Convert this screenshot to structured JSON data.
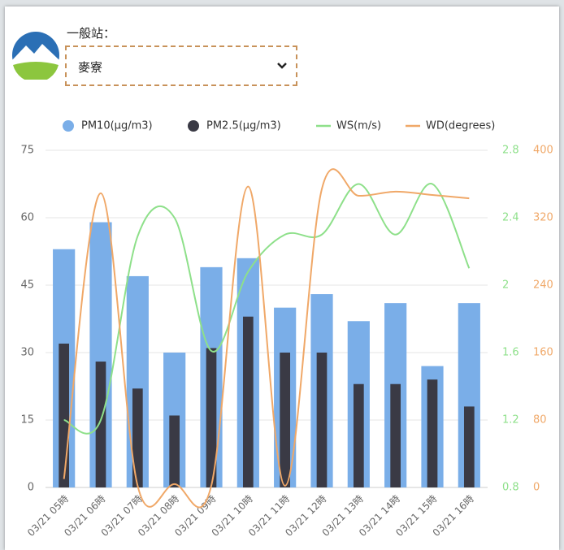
{
  "station_label": "一般站：",
  "station_select": "麥寮",
  "chart_data": {
    "type": "bar",
    "categories": [
      "03/21 05時",
      "03/21 06時",
      "03/21 07時",
      "03/21 08時",
      "03/21 09時",
      "03/21 10時",
      "03/21 11時",
      "03/21 12時",
      "03/21 13時",
      "03/21 14時",
      "03/21 15時",
      "03/21 16時"
    ],
    "series": [
      {
        "name": "PM10(μg/m3)",
        "color": "#7aaee8",
        "type": "bar",
        "values": [
          53,
          59,
          47,
          30,
          49,
          51,
          40,
          43,
          37,
          41,
          27,
          41
        ]
      },
      {
        "name": "PM2.5(μg/m3)",
        "color": "#3a3a45",
        "type": "bar",
        "values": [
          32,
          28,
          22,
          16,
          31,
          38,
          30,
          30,
          23,
          23,
          24,
          18
        ]
      },
      {
        "name": "WS(m/s)",
        "color": "#8ee08a",
        "type": "line",
        "axis": "y2",
        "values": [
          1.2,
          1.2,
          2.29,
          2.4,
          1.61,
          2.08,
          2.3,
          2.3,
          2.6,
          2.3,
          2.6,
          2.1
        ]
      },
      {
        "name": "WD(degrees)",
        "color": "#f0a868",
        "type": "line",
        "axis": "y3",
        "values": [
          10,
          349,
          2,
          4,
          2,
          357,
          2,
          354,
          346,
          351,
          347,
          343
        ]
      }
    ],
    "ylim": [
      0,
      75
    ],
    "yticks": [
      0,
      15,
      30,
      45,
      60,
      75
    ],
    "y2lim": [
      0.8,
      2.8
    ],
    "y2ticks": [
      0.8,
      1.2,
      1.6,
      2,
      2.4,
      2.8
    ],
    "y3lim": [
      0,
      400
    ],
    "y3ticks": [
      0,
      80,
      160,
      240,
      320,
      400
    ],
    "grid": true,
    "legend": "top"
  }
}
